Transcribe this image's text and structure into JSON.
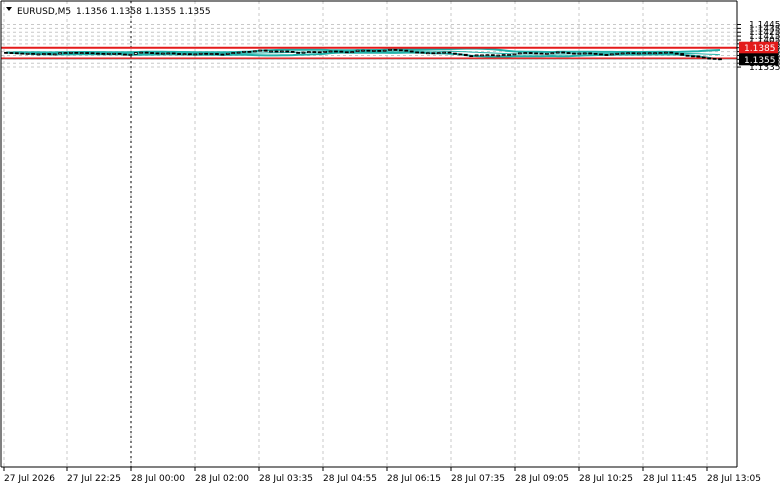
{
  "header": {
    "symbol": "EURUSD,M5",
    "ohlc": "1.1356 1.1358 1.1355 1.1355",
    "menu_icon": "triangle-down-icon"
  },
  "chart_data": {
    "type": "candlestick",
    "symbol": "EURUSD",
    "timeframe": "M5",
    "ylim": [
      1.133,
      1.1452
    ],
    "y_ticks": [
      "1.1445",
      "1.1435",
      "1.1425",
      "1.1415",
      "1.1405",
      "1.1395",
      "1.1385",
      "1.1375",
      "1.1365",
      "1.1355",
      "1.1345",
      "1.1335"
    ],
    "x_ticks": [
      "27 Jul 2026",
      "27 Jul 22:25",
      "28 Jul 00:00",
      "28 Jul 02:00",
      "28 Jul 03:35",
      "28 Jul 04:55",
      "28 Jul 06:15",
      "28 Jul 07:35",
      "28 Jul 09:05",
      "28 Jul 10:25",
      "28 Jul 11:45",
      "28 Jul 13:05"
    ],
    "grid": true,
    "vertical_marker_at": "28 Jul 00:00",
    "horizontal_levels": [
      {
        "label": "1.1385",
        "value": 1.1385,
        "color": "#e31a1a"
      },
      {
        "label": "1.1357",
        "value": 1.1357,
        "color": "#e31a1a"
      }
    ],
    "current_price": {
      "label": "1.1355",
      "value": 1.1355
    },
    "colors": {
      "candle": "#000000",
      "bands": "#20b2aa",
      "level": "#e31a1a",
      "grid": "#c8c8c8",
      "price_badge": "#000000"
    },
    "close": [
      1.13725,
      1.1372,
      1.1371,
      1.13705,
      1.13705,
      1.1369,
      1.1369,
      1.137,
      1.13685,
      1.1369,
      1.1372,
      1.13725,
      1.1373,
      1.1371,
      1.13725,
      1.1372,
      1.1371,
      1.13705,
      1.137,
      1.13705,
      1.13705,
      1.13685,
      1.1367,
      1.1368,
      1.13725,
      1.13735,
      1.13725,
      1.13715,
      1.1371,
      1.1371,
      1.13715,
      1.137,
      1.1369,
      1.13695,
      1.1368,
      1.1369,
      1.13705,
      1.1369,
      1.137,
      1.13685,
      1.13675,
      1.13705,
      1.13725,
      1.13735,
      1.13755,
      1.1375,
      1.1377,
      1.1379,
      1.1376,
      1.13765,
      1.13755,
      1.13765,
      1.13755,
      1.1373,
      1.13725,
      1.13735,
      1.1375,
      1.13745,
      1.1374,
      1.13755,
      1.13765,
      1.1376,
      1.13745,
      1.13735,
      1.1375,
      1.13785,
      1.13785,
      1.1378,
      1.1378,
      1.13775,
      1.13785,
      1.13805,
      1.13795,
      1.13785,
      1.13765,
      1.1374,
      1.13735,
      1.1372,
      1.1372,
      1.13715,
      1.13725,
      1.13735,
      1.1371,
      1.1369,
      1.1368,
      1.13645,
      1.1364,
      1.13665,
      1.13665,
      1.1367,
      1.13655,
      1.1366,
      1.13675,
      1.13675,
      1.1369,
      1.13715,
      1.13725,
      1.13715,
      1.1371,
      1.13695,
      1.13705,
      1.1372,
      1.1374,
      1.13725,
      1.1371,
      1.13705,
      1.1371,
      1.13715,
      1.13705,
      1.1369,
      1.13675,
      1.13665,
      1.1369,
      1.13705,
      1.13715,
      1.1372,
      1.13705,
      1.13715,
      1.1372,
      1.1372,
      1.1372,
      1.13725,
      1.13735,
      1.1371,
      1.137,
      1.13655,
      1.1364,
      1.13635,
      1.1361,
      1.13585,
      1.13575,
      1.13565,
      1.13555
    ]
  }
}
